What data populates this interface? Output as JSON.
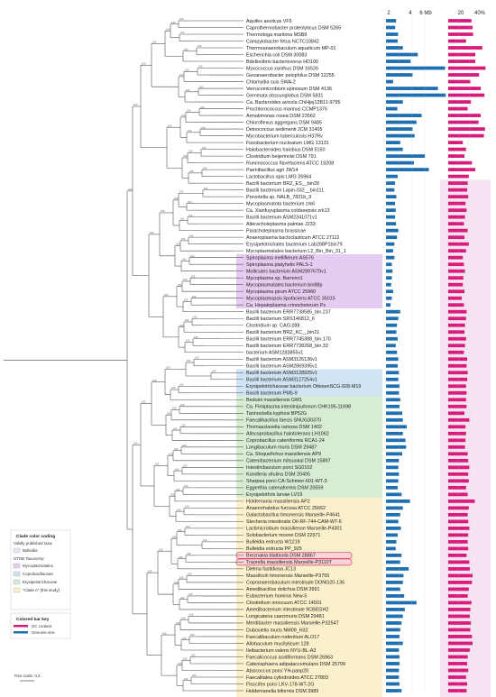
{
  "axis": {
    "genome_ticks": [
      "2",
      "4",
      "6 Mb"
    ],
    "gc_ticks": [
      "20",
      "40%"
    ]
  },
  "colors": {
    "subtilis": "#e8e4f6",
    "mycoplasmatales": "#e5ccf0",
    "coprobacillaceae": "#cfe3f2",
    "erysipelotrichales": "#d8ebd3",
    "clade_a": "#fbf0cc",
    "gc": "#d81b7b",
    "genome": "#1f6fb0",
    "tree": "#444444"
  },
  "key": {
    "clade_title": "Clade color coding",
    "items": [
      {
        "label": "Validly published taxa:",
        "color": "#ffffff"
      },
      {
        "label": "Bulleidia",
        "color": "#e8e4f6"
      },
      {
        "label": "GTDB Taxonomy:",
        "color": "#ffffff"
      },
      {
        "label": "Mycoplasmatales",
        "color": "#e5ccf0"
      },
      {
        "label": "Coprobacillaceae",
        "color": "#cfe3f2"
      },
      {
        "label": "Erysipelotrichaceae",
        "color": "#d8ebd3"
      },
      {
        "label": "“Clade A” (this study)",
        "color": "#fbf0cc"
      }
    ],
    "bar_title": "Colored bar key",
    "gc_label": "GC content",
    "genome_label": "Genome size"
  },
  "scale_label": "Tree scale: 0.2",
  "taxa": [
    {
      "name": "Aquifex aeolicus VF5",
      "g": 1.55,
      "gc": 43,
      "hl": 0
    },
    {
      "name": "Caprothermobacter proteolyticus DSM 5265",
      "g": 1.42,
      "gc": 45,
      "hl": 0
    },
    {
      "name": "Thermotoga maritima MSB8",
      "g": 1.86,
      "gc": 46,
      "hl": 0
    },
    {
      "name": "Campylobacter fetus NCTC10842",
      "g": 1.8,
      "gc": 33,
      "hl": 0
    },
    {
      "name": "Thermoanaerobaculum aquaticum MP-01",
      "g": 2.6,
      "gc": 63,
      "hl": 0
    },
    {
      "name": "Escherichia coli DSM 30083",
      "g": 4.9,
      "gc": 50,
      "hl": 0
    },
    {
      "name": "Bdellovibrio bacteriovorus HD100",
      "g": 3.8,
      "gc": 50,
      "hl": 0
    },
    {
      "name": "Myxococcus xanthus DSM 16526",
      "g": 9.1,
      "gc": 69,
      "hl": 0
    },
    {
      "name": "Geoanaerobacter pelophilus DSM 12255",
      "g": 4.1,
      "gc": 57,
      "hl": 0
    },
    {
      "name": "Chlamydia suis SWA-2",
      "g": 1.1,
      "gc": 41,
      "hl": 0
    },
    {
      "name": "Verrucomicrobium spinosum DSM 4136",
      "g": 8.0,
      "gc": 60,
      "hl": 0
    },
    {
      "name": "Gemmata obscuriglobus DSM 5831",
      "g": 9.2,
      "gc": 67,
      "hl": 0
    },
    {
      "name": "Ca. Bacteroides avicola ChiHjej12B11-9795",
      "g": 2.6,
      "gc": 42,
      "hl": 0
    },
    {
      "name": "Prochlorococcus marinus CCMP1375",
      "g": 1.75,
      "gc": 36,
      "hl": 0
    },
    {
      "name": "Armatimonas rosea DSM 23562",
      "g": 5.5,
      "gc": 60,
      "hl": 0
    },
    {
      "name": "Chloroflexus aggregans DSM 9485",
      "g": 4.7,
      "gc": 56,
      "hl": 0
    },
    {
      "name": "Deinococcus sedimenti JCM 31405",
      "g": 4.1,
      "gc": 68,
      "hl": 0
    },
    {
      "name": "Mycobacterium tuberculosis H37Rv",
      "g": 4.4,
      "gc": 66,
      "hl": 0
    },
    {
      "name": "Fusobacterium nucleatum LMG 13131",
      "g": 2.2,
      "gc": 27,
      "hl": 0
    },
    {
      "name": "Halobacteroides halobius DSM 5150",
      "g": 2.6,
      "gc": 33,
      "hl": 0
    },
    {
      "name": "Clostridium beijerinckii DSM 791",
      "g": 6.0,
      "gc": 30,
      "hl": 0
    },
    {
      "name": "Ruminococcus flavefaciens ATCC 19208",
      "g": 4.3,
      "gc": 44,
      "hl": 0
    },
    {
      "name": "Paenibacillus agri JW14",
      "g": 6.6,
      "gc": 50,
      "hl": 0
    },
    {
      "name": "Lactobacillus apis LMG 26964",
      "g": 1.8,
      "gc": 38,
      "hl": 0
    },
    {
      "name": "Bacilli bacterium BRZ_ES__bin28",
      "g": 1.4,
      "gc": 36,
      "hl": 0
    },
    {
      "name": "Bacilli bacterium Lapin-032__bin111",
      "g": 1.3,
      "gc": 35,
      "hl": 0
    },
    {
      "name": "Prevotella sp. NALB_7821b_9",
      "g": 1.6,
      "gc": 37,
      "hl": 0
    },
    {
      "name": "Mycoplasmatota bacterium zrk6",
      "g": 1.4,
      "gc": 32,
      "hl": 0
    },
    {
      "name": "Ca. Xianfuyuplasma coldseepsis zrk13",
      "g": 1.5,
      "gc": 34,
      "hl": 0
    },
    {
      "name": "Bacilli bacterium ASM2341071v1",
      "g": 1.4,
      "gc": 31,
      "hl": 0
    },
    {
      "name": "Alteracholeplasma palmae J233",
      "g": 1.55,
      "gc": 29,
      "hl": 0
    },
    {
      "name": "Paracholeplasma brassicae",
      "g": 1.9,
      "gc": 36,
      "hl": 0
    },
    {
      "name": "Anaeroplasma bactoclasticum ATCC 27112",
      "g": 1.7,
      "gc": 30,
      "hl": 0
    },
    {
      "name": "Erysipelotrichales bacterium Lab288P1bin79",
      "g": 1.3,
      "gc": 38,
      "hl": 0
    },
    {
      "name": "Mycoplasmatales bacterium L2_Bin_Bin_31_1",
      "g": 1.1,
      "gc": 33,
      "hl": 0
    },
    {
      "name": "Spiroplasma mellifierum AS576",
      "g": 1.3,
      "gc": 27,
      "hl": 0
    },
    {
      "name": "Spiroplasma platyhelix PALS-1",
      "g": 0.9,
      "gc": 29,
      "hl": 0
    },
    {
      "name": "Mollicutes bacterium ASM2997670v1",
      "g": 1.0,
      "gc": 31,
      "hl": 0
    },
    {
      "name": "Mycoplasma sp. Barreiro1",
      "g": 0.9,
      "gc": 28,
      "hl": 0
    },
    {
      "name": "Mycoplasmatales bacterium bin88p",
      "g": 0.8,
      "gc": 27,
      "hl": 0
    },
    {
      "name": "Mycoplasma pirum ATCC 25960",
      "g": 1.1,
      "gc": 30,
      "hl": 0
    },
    {
      "name": "Mycoplasmopsis lipofaciens ATCC 35015",
      "g": 0.9,
      "gc": 25,
      "hl": 0
    },
    {
      "name": "Ca. Hepatoplasma crinochetorum Ps",
      "g": 0.7,
      "gc": 29,
      "hl": 0
    },
    {
      "name": "Bacilli bacterium ERR7738585_bin.237",
      "g": 2.2,
      "gc": 34,
      "hl": 0
    },
    {
      "name": "Bacilli bacterium SRS146812_6",
      "g": 1.9,
      "gc": 33,
      "hl": 0
    },
    {
      "name": "Clostridium sp. CAG:288",
      "g": 1.7,
      "gc": 31,
      "hl": 0
    },
    {
      "name": "Bacilli bacterium BRZ_KC__bin21",
      "g": 1.6,
      "gc": 30,
      "hl": 0
    },
    {
      "name": "Bacilli bacterium ERR7745388_bin.170",
      "g": 1.8,
      "gc": 33,
      "hl": 0
    },
    {
      "name": "Bacilli bacterium ERR7738268_bin.33",
      "g": 1.5,
      "gc": 31,
      "hl": 0
    },
    {
      "name": "bacterium ASM1283855v1",
      "g": 1.7,
      "gc": 29,
      "hl": 0
    },
    {
      "name": "Bacilli bacterium ASM3126136v1",
      "g": 1.9,
      "gc": 35,
      "hl": 0
    },
    {
      "name": "Bacilli bacterium ASM2869395v1",
      "g": 1.8,
      "gc": 34,
      "hl": 0
    },
    {
      "name": "Bacilli bacterium ASM3128925v1",
      "g": 2.0,
      "gc": 36,
      "hl": 0
    },
    {
      "name": "Bacilli bacterium ASM3127254v1",
      "g": 1.9,
      "gc": 35,
      "hl": 0
    },
    {
      "name": "Erysipelotrichaceae bacterium OttesenSCG-928-M19",
      "g": 2.1,
      "gc": 33,
      "hl": 0
    },
    {
      "name": "Bacilli bacterium PM5-9",
      "g": 2.0,
      "gc": 34,
      "hl": 0
    },
    {
      "name": "Beduini massiliensis GM1",
      "g": 2.2,
      "gc": 33,
      "hl": 0
    },
    {
      "name": "Ca. Fimiplasma intestinipullorum CHK195-11698",
      "g": 2.1,
      "gc": 34,
      "hl": 0
    },
    {
      "name": "Tannockella kyphosi BP52G",
      "g": 2.5,
      "gc": 30,
      "hl": 0
    },
    {
      "name": "Faecalibacillus faecis SNUG30370",
      "g": 2.6,
      "gc": 39,
      "hl": 0
    },
    {
      "name": "Thomasclavelia ramosa DSM 1402",
      "g": 3.2,
      "gc": 32,
      "hl": 0
    },
    {
      "name": "Allocoprobacillus halotolerans LH1062",
      "g": 2.6,
      "gc": 33,
      "hl": 0
    },
    {
      "name": "Coprobacillus cateniformis RCA1-24",
      "g": 3.0,
      "gc": 32,
      "hl": 0
    },
    {
      "name": "Longibaculum muris DSM 29487",
      "g": 3.1,
      "gc": 31,
      "hl": 0
    },
    {
      "name": "Ca. Stoquefichus massiliensis AP9",
      "g": 2.5,
      "gc": 36,
      "hl": 0
    },
    {
      "name": "Catenibacterium mitsuokai DSM 15897",
      "g": 2.0,
      "gc": 37,
      "hl": 0
    },
    {
      "name": "Intestinibaculum porci SG0102",
      "g": 1.9,
      "gc": 39,
      "hl": 0
    },
    {
      "name": "Kandleria vitulina DSM 20405",
      "g": 2.0,
      "gc": 37,
      "hl": 0
    },
    {
      "name": "Sharpea porci CA-Schmier-601-WT-3",
      "g": 1.9,
      "gc": 38,
      "hl": 0
    },
    {
      "name": "Eggerthia catenaformis DSM 20559",
      "g": 1.8,
      "gc": 33,
      "hl": 0
    },
    {
      "name": "Erysipelothrix larvae LV19",
      "g": 2.4,
      "gc": 36,
      "hl": 0
    },
    {
      "name": "Holdemania massiliensis AP2",
      "g": 3.7,
      "gc": 49,
      "hl": 0
    },
    {
      "name": "Anaerorhabdus furcosa ATCC 25662",
      "g": 2.6,
      "gc": 38,
      "hl": 0
    },
    {
      "name": "Galactobacillus timonensis Marseille-P4641",
      "g": 2.2,
      "gc": 36,
      "hl": 0
    },
    {
      "name": "Stecheria intestinalis Oil-RF-744-CAM-WT-6",
      "g": 1.9,
      "gc": 37,
      "hl": 0
    },
    {
      "name": "Lactimicrobium massiliense Marseille-P4301",
      "g": 2.3,
      "gc": 39,
      "hl": 0
    },
    {
      "name": "Solobacterium moorei DSM 22971",
      "g": 1.8,
      "gc": 37,
      "hl": 0
    },
    {
      "name": "Bulleidia extructa W1219",
      "g": 1.6,
      "gc": 36,
      "hl": 1
    },
    {
      "name": "Bulleidia extructa PP_925",
      "g": 1.5,
      "gc": 37,
      "hl": 1
    },
    {
      "name": "Breznakia blatticola DSM 28867",
      "g": 2.4,
      "gc": 34,
      "hl": 0
    },
    {
      "name": "Traorella massiliensis Marseille-P3110T",
      "g": 2.2,
      "gc": 39,
      "hl": 0
    },
    {
      "name": "Dielma fastidiosa JC13",
      "g": 3.5,
      "gc": 40,
      "hl": 0
    },
    {
      "name": "Massilicoli timonensis Marseille-P3755",
      "g": 2.7,
      "gc": 45,
      "hl": 0
    },
    {
      "name": "Copranaerobaculum intestinale DONG20-135",
      "g": 2.6,
      "gc": 44,
      "hl": 0
    },
    {
      "name": "Amedibacillus dolichus DSM 3991",
      "g": 2.2,
      "gc": 38,
      "hl": 0
    },
    {
      "name": "Eubacterium hominis New-5",
      "g": 2.8,
      "gc": 36,
      "hl": 0
    },
    {
      "name": "Clostridium innocuum ATCC 14501",
      "g": 4.7,
      "gc": 43,
      "hl": 0
    },
    {
      "name": "Amedibacterium intestinale 9CBEGH2",
      "g": 2.9,
      "gc": 41,
      "hl": 0
    },
    {
      "name": "Longicatena caecimuris DSM 29481",
      "g": 2.6,
      "gc": 40,
      "hl": 0
    },
    {
      "name": "Merdibacter massiliensis Marseille-P3254T",
      "g": 2.4,
      "gc": 42,
      "hl": 0
    },
    {
      "name": "Dubosiella muris NM09_H32",
      "g": 2.2,
      "gc": 41,
      "hl": 0
    },
    {
      "name": "Faecalibaculum rodentium ALO17",
      "g": 2.1,
      "gc": 44,
      "hl": 0
    },
    {
      "name": "Allobaculum mucilyticum 128",
      "g": 2.6,
      "gc": 45,
      "hl": 0
    },
    {
      "name": "Ileibacterium valens NYU-BL-A3",
      "g": 2.0,
      "gc": 40,
      "hl": 0
    },
    {
      "name": "Faecalicoccus acidiformans DSM 26963",
      "g": 2.1,
      "gc": 36,
      "hl": 0
    },
    {
      "name": "Catenisphaera adipataccumulans DSM 25799",
      "g": 2.1,
      "gc": 35,
      "hl": 0
    },
    {
      "name": "Absicoccus porci YH-panp20",
      "g": 2.0,
      "gc": 37,
      "hl": 0
    },
    {
      "name": "Faecalitalea cylindroides ATCC 27803",
      "g": 2.0,
      "gc": 33,
      "hl": 0
    },
    {
      "name": "Floccifex porci LKV-178-WT-2G",
      "g": 2.1,
      "gc": 35,
      "hl": 0
    },
    {
      "name": "Holdemanella biformis DSM 3989",
      "g": 2.4,
      "gc": 34,
      "hl": 0
    }
  ]
}
